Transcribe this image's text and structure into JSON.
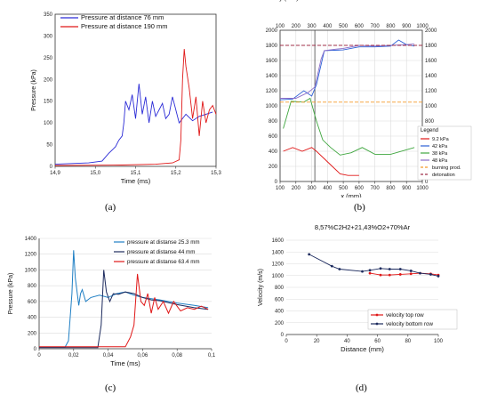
{
  "captions": [
    "(a)",
    "(b)",
    "(c)",
    "(d)"
  ],
  "colors": {
    "blue": "#2b2bd6",
    "red": "#e01818",
    "lightblue": "#1f7fc4",
    "navy": "#1d2b5e",
    "green": "#3fa63f",
    "purple": "#8c6dc8",
    "orange": "#f59a2a",
    "darkred": "#a0304a",
    "grid": "#d9d9d9"
  },
  "chart_data": [
    {
      "type": "line",
      "xlabel": "Time (ms)",
      "ylabel": "Pressure (kPa)",
      "xlim": [
        14.9,
        15.38
      ],
      "ylim": [
        0,
        350
      ],
      "xticks": [
        "14,9",
        "15,0",
        "15,1",
        "15,2",
        "15,3"
      ],
      "yticks": [
        "0",
        "50",
        "100",
        "150",
        "200",
        "250",
        "300",
        "350"
      ],
      "legend_position": "top-left",
      "series": [
        {
          "name": "Pressure at distance 76 mm",
          "color": "#2b2bd6",
          "x": [
            14.9,
            15.0,
            15.04,
            15.06,
            15.08,
            15.09,
            15.1,
            15.105,
            15.11,
            15.12,
            15.13,
            15.14,
            15.15,
            15.16,
            15.17,
            15.18,
            15.19,
            15.2,
            15.21,
            15.22,
            15.23,
            15.24,
            15.25,
            15.27,
            15.29,
            15.31,
            15.33,
            15.35,
            15.37
          ],
          "y": [
            5,
            8,
            12,
            30,
            45,
            60,
            70,
            100,
            150,
            130,
            165,
            110,
            190,
            120,
            160,
            100,
            150,
            115,
            130,
            145,
            110,
            120,
            160,
            100,
            120,
            105,
            115,
            120,
            125
          ]
        },
        {
          "name": "Pressure at distance 190 mm",
          "color": "#e01818",
          "x": [
            14.9,
            15.1,
            15.2,
            15.25,
            15.27,
            15.275,
            15.28,
            15.285,
            15.29,
            15.3,
            15.31,
            15.32,
            15.33,
            15.34,
            15.35,
            15.36,
            15.37,
            15.38
          ],
          "y": [
            2,
            3,
            5,
            8,
            15,
            60,
            200,
            270,
            230,
            180,
            110,
            160,
            70,
            150,
            100,
            130,
            140,
            120
          ]
        }
      ]
    },
    {
      "type": "line",
      "xlabel": "x (mm)",
      "ylabel": "velocity (m/s)",
      "xlim": [
        100,
        1000
      ],
      "ylim": [
        0,
        2000
      ],
      "xticks": [
        "100",
        "200",
        "300",
        "400",
        "500",
        "600",
        "700",
        "800",
        "900",
        "1000"
      ],
      "yticks": [
        "0",
        "200",
        "400",
        "600",
        "800",
        "1000",
        "1200",
        "1400",
        "1600",
        "1800",
        "2000"
      ],
      "legend_title": "Legend",
      "legend_position": "right",
      "series": [
        {
          "name": "9.2 kPa",
          "color": "#e01818",
          "x": [
            120,
            180,
            240,
            300,
            330,
            380,
            430,
            480,
            530,
            600
          ],
          "y": [
            400,
            450,
            400,
            450,
            400,
            300,
            200,
            100,
            80,
            80
          ]
        },
        {
          "name": "42 kPa",
          "color": "#2b5fd6",
          "x": [
            100,
            180,
            250,
            300,
            330,
            380,
            500,
            600,
            700,
            800,
            850,
            900,
            950
          ],
          "y": [
            1080,
            1090,
            1200,
            1130,
            1280,
            1730,
            1740,
            1780,
            1780,
            1790,
            1870,
            1810,
            1790
          ]
        },
        {
          "name": "38 kPa",
          "color": "#3fa63f",
          "x": [
            120,
            170,
            250,
            290,
            330,
            370,
            420,
            480,
            550,
            620,
            700,
            800,
            950
          ],
          "y": [
            700,
            1060,
            1050,
            1100,
            800,
            550,
            450,
            350,
            380,
            450,
            360,
            360,
            450
          ]
        },
        {
          "name": "48 kPa",
          "color": "#8c6dc8",
          "x": [
            100,
            160,
            200,
            280,
            320,
            360,
            380,
            450,
            500,
            600,
            700,
            800,
            900,
            950
          ],
          "y": [
            1100,
            1100,
            1100,
            1180,
            1250,
            1620,
            1730,
            1750,
            1760,
            1800,
            1790,
            1800,
            1810,
            1820
          ]
        },
        {
          "name": "burning prod.",
          "color": "#f59a2a",
          "dashed": true,
          "x": [
            100,
            1000
          ],
          "y": [
            1050,
            1050
          ]
        },
        {
          "name": "detonation",
          "color": "#a0304a",
          "dashed": true,
          "x": [
            100,
            1000
          ],
          "y": [
            1800,
            1800
          ]
        }
      ]
    },
    {
      "type": "line",
      "xlabel": "Time (ms)",
      "ylabel": "Pressure (kPa)",
      "xlim": [
        0,
        0.1
      ],
      "ylim": [
        0,
        1400
      ],
      "xticks": [
        "0",
        "0,02",
        "0,04",
        "0,06",
        "0,08",
        "0,1"
      ],
      "yticks": [
        "0",
        "200",
        "400",
        "600",
        "800",
        "1000",
        "1200",
        "1400"
      ],
      "legend_position": "top-right",
      "series": [
        {
          "name": "pressure at distanse 25.3 mm",
          "color": "#1f7fc4",
          "x": [
            0.0,
            0.015,
            0.017,
            0.019,
            0.02,
            0.021,
            0.023,
            0.024,
            0.025,
            0.027,
            0.03,
            0.035,
            0.04,
            0.045,
            0.05,
            0.055,
            0.06,
            0.07,
            0.08,
            0.09,
            0.098
          ],
          "y": [
            20,
            20,
            100,
            700,
            1250,
            900,
            550,
            700,
            750,
            600,
            650,
            680,
            650,
            700,
            720,
            680,
            650,
            620,
            580,
            550,
            520
          ]
        },
        {
          "name": "pressure at distanse 44 mm",
          "color": "#1d2b5e",
          "x": [
            0.0,
            0.034,
            0.036,
            0.0375,
            0.039,
            0.041,
            0.043,
            0.046,
            0.05,
            0.055,
            0.06,
            0.065,
            0.07,
            0.08,
            0.09,
            0.098
          ],
          "y": [
            15,
            15,
            300,
            1000,
            720,
            600,
            700,
            690,
            720,
            700,
            650,
            620,
            610,
            560,
            520,
            500
          ]
        },
        {
          "name": "pressure at distanse 63.4 mm",
          "color": "#e01818",
          "x": [
            0.0,
            0.05,
            0.053,
            0.055,
            0.057,
            0.059,
            0.061,
            0.063,
            0.065,
            0.067,
            0.069,
            0.072,
            0.075,
            0.078,
            0.082,
            0.086,
            0.09,
            0.094,
            0.098
          ],
          "y": [
            25,
            25,
            150,
            300,
            950,
            600,
            550,
            700,
            450,
            650,
            500,
            600,
            450,
            600,
            480,
            520,
            500,
            540,
            500
          ]
        }
      ]
    },
    {
      "type": "line",
      "title": "8,57%C2H2+21,43%O2+70%Ar",
      "xlabel": "Distance (mm)",
      "ylabel": "Velocity (m/s)",
      "xlim": [
        0,
        100
      ],
      "ylim": [
        0,
        1600
      ],
      "xticks": [
        "0",
        "20",
        "40",
        "60",
        "80",
        "100"
      ],
      "yticks": [
        "0",
        "200",
        "400",
        "600",
        "800",
        "1000",
        "1200",
        "1400",
        "1600"
      ],
      "legend_position": "bottom-right",
      "series": [
        {
          "name": "velocity top row",
          "color": "#e01818",
          "x": [
            55,
            62,
            68,
            75,
            82,
            88,
            95,
            100
          ],
          "y": [
            1040,
            1010,
            1010,
            1020,
            1030,
            1040,
            1030,
            1010
          ]
        },
        {
          "name": "velocity bottom row",
          "color": "#1d2b5e",
          "x": [
            15,
            30,
            35,
            50,
            55,
            62,
            68,
            75,
            82,
            88,
            95,
            100
          ],
          "y": [
            1360,
            1160,
            1110,
            1070,
            1090,
            1120,
            1110,
            1110,
            1080,
            1040,
            1020,
            990
          ]
        }
      ]
    }
  ]
}
